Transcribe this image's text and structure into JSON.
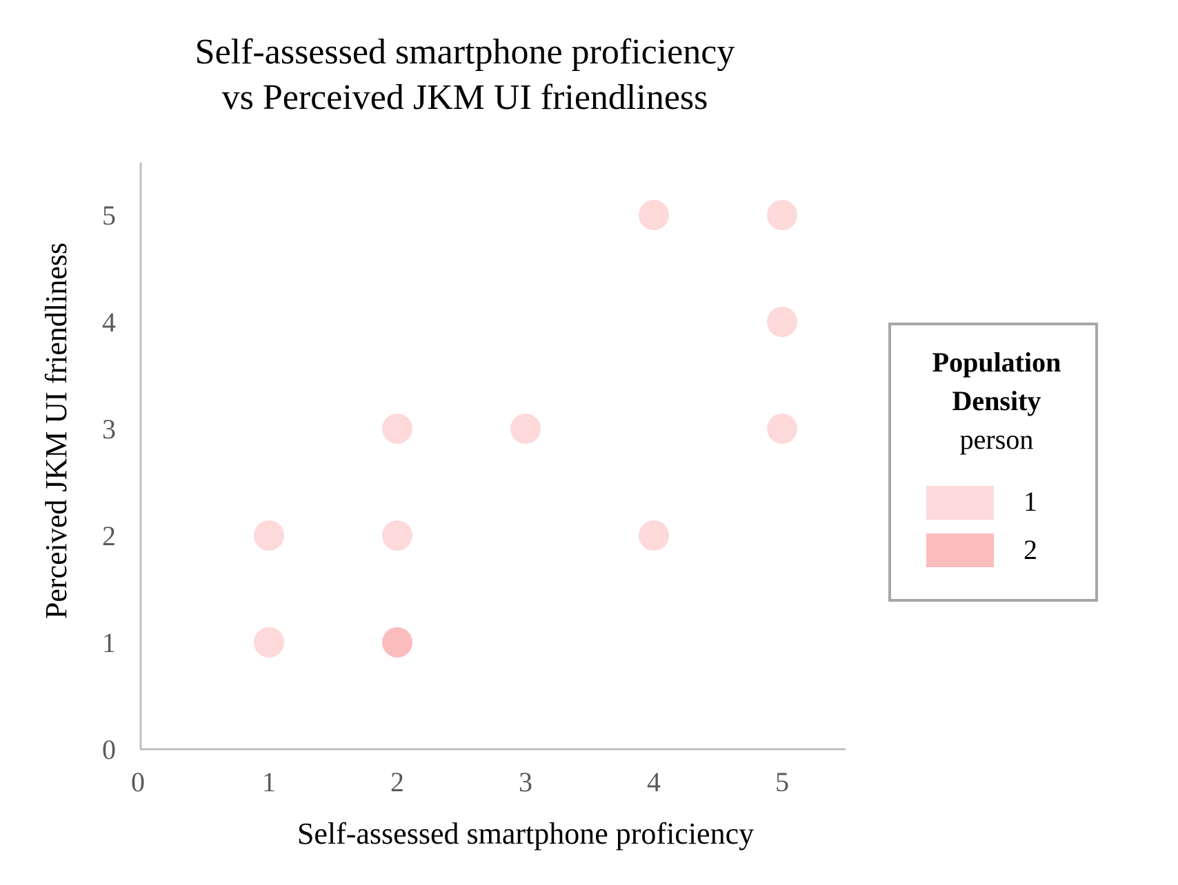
{
  "chart_data": {
    "type": "scatter",
    "title_lines": [
      "Self-assessed smartphone proficiency",
      "vs Perceived JKM UI friendliness"
    ],
    "xlabel": "Self-assessed smartphone proficiency",
    "ylabel": "Perceived JKM UI friendliness",
    "xlim": [
      0,
      5.5
    ],
    "ylim": [
      0,
      5.5
    ],
    "x_ticks": [
      "0",
      "1",
      "2",
      "3",
      "4",
      "5"
    ],
    "y_ticks": [
      "0",
      "1",
      "2",
      "3",
      "4",
      "5"
    ],
    "grid": false,
    "points": [
      {
        "x": 4,
        "y": 5,
        "count": 1
      },
      {
        "x": 5,
        "y": 5,
        "count": 1
      },
      {
        "x": 5,
        "y": 4,
        "count": 1
      },
      {
        "x": 2,
        "y": 3,
        "count": 1
      },
      {
        "x": 3,
        "y": 3,
        "count": 1
      },
      {
        "x": 5,
        "y": 3,
        "count": 1
      },
      {
        "x": 1,
        "y": 2,
        "count": 1
      },
      {
        "x": 2,
        "y": 2,
        "count": 1
      },
      {
        "x": 4,
        "y": 2,
        "count": 1
      },
      {
        "x": 1,
        "y": 1,
        "count": 1
      },
      {
        "x": 2,
        "y": 1,
        "count": 2
      }
    ],
    "legend": {
      "placement": "right",
      "title_lines": [
        "Population",
        "Density"
      ],
      "subtitle": "person",
      "entries": [
        {
          "label": "1",
          "value": 1,
          "color": "#fdd9da"
        },
        {
          "label": "2",
          "value": 2,
          "color": "#fbbcbe"
        }
      ]
    },
    "colors": {
      "axis": "#bfbfbf",
      "tick_text": "#595959",
      "legend_border": "#a6a6a6"
    }
  }
}
